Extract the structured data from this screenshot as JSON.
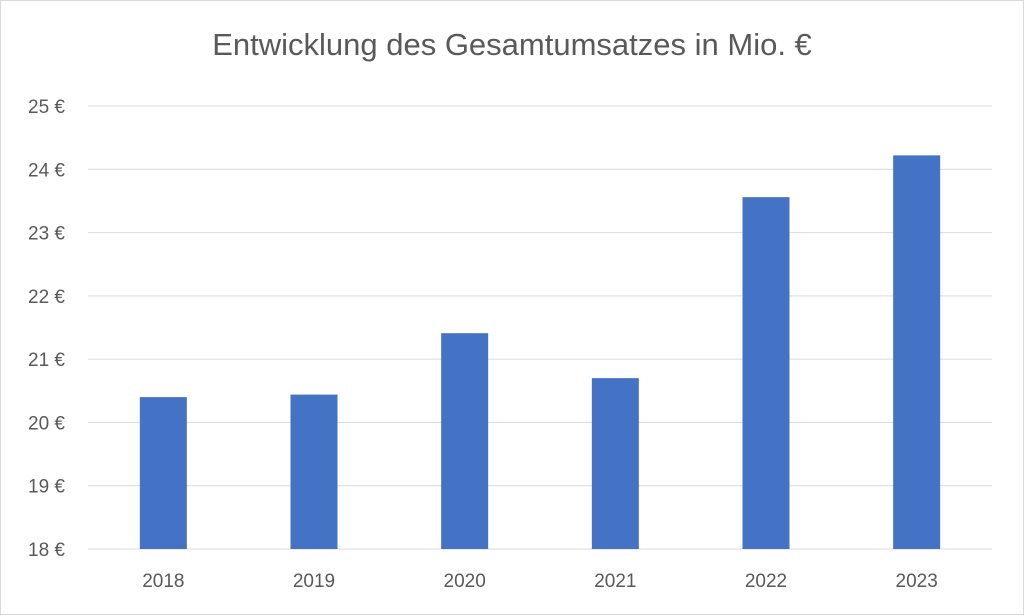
{
  "chart_data": {
    "type": "bar",
    "title": "Entwicklung des Gesamtumsatzes in Mio. €",
    "categories": [
      "2018",
      "2019",
      "2020",
      "2021",
      "2022",
      "2023"
    ],
    "values": [
      20.4,
      20.44,
      21.41,
      20.7,
      23.56,
      24.22
    ],
    "ylim": [
      18,
      25
    ],
    "yticks": [
      18,
      19,
      20,
      21,
      22,
      23,
      24,
      25
    ],
    "ytick_suffix": " €",
    "grid": true,
    "legend": "none",
    "xlabel": "",
    "ylabel": "",
    "colors": {
      "bar": "#4472c4",
      "grid": "#d9d9d9",
      "text": "#595959"
    }
  }
}
